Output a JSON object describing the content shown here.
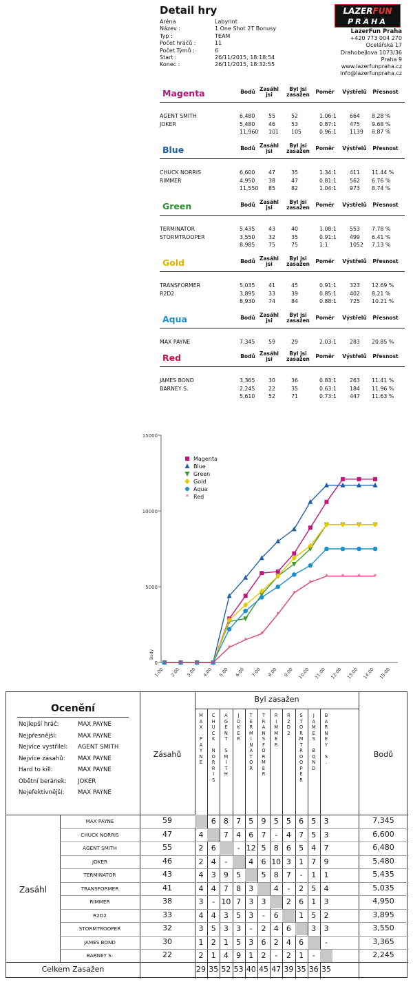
{
  "detail": {
    "title": "Detail hry",
    "fields": [
      {
        "label": "Aréna",
        "value": "Labyrint"
      },
      {
        "label": "Název :",
        "value": "1 One Shot 2T Bonusy"
      },
      {
        "label": "Typ :",
        "value": "TEAM"
      },
      {
        "label": "Počet hráčů :",
        "value": "11"
      },
      {
        "label": "Počet Týmů :",
        "value": "6"
      },
      {
        "label": "Start :",
        "value": "26/11/2015,   18:18:54"
      },
      {
        "label": "Konec :",
        "value": "26/11/2015,   18:32:55"
      }
    ]
  },
  "logo": {
    "line1a": "LAZER",
    "line1b": "FUN",
    "line2": "PRAHA"
  },
  "company": {
    "name": "LazerFun Praha",
    "lines": [
      "+420 773 004 270",
      "Ocelářská 17",
      "Drahobejlova 1073/36",
      "Praha 9",
      "www.lazerfunpraha.cz",
      "info@lazerfunpraha.cz"
    ]
  },
  "headers": {
    "bodu": "Bodů",
    "zasahl": "Zasáhl\njsi",
    "zasazen": "Byl jsi\nzasažen",
    "pomer": "Poměr",
    "vystrelu": "Výstřelů",
    "presnost": "Přesnost"
  },
  "teams": [
    {
      "name": "Magenta",
      "color": "#b5157a",
      "players": [
        {
          "name": "AGENT SMITH",
          "bodu": "6,480",
          "zasahl": "55",
          "zasazen": "52",
          "pomer": "1.06:1",
          "vystrelu": "664",
          "presnost": "8.28 %"
        },
        {
          "name": "JOKER",
          "bodu": "5,480",
          "zasahl": "46",
          "zasazen": "53",
          "pomer": "0.87:1",
          "vystrelu": "475",
          "presnost": "9.68 %"
        }
      ],
      "total": {
        "bodu": "11,960",
        "zasahl": "101",
        "zasazen": "105",
        "pomer": "0.96:1",
        "vystrelu": "1139",
        "presnost": "8.87 %"
      }
    },
    {
      "name": "Blue",
      "color": "#1f5fa8",
      "players": [
        {
          "name": "CHUCK NORRIS",
          "bodu": "6,600",
          "zasahl": "47",
          "zasazen": "35",
          "pomer": "1.34:1",
          "vystrelu": "411",
          "presnost": "11.44 %"
        },
        {
          "name": "RIMMER",
          "bodu": "4,950",
          "zasahl": "38",
          "zasazen": "47",
          "pomer": "0.81:1",
          "vystrelu": "562",
          "presnost": "6.76 %"
        }
      ],
      "total": {
        "bodu": "11,550",
        "zasahl": "85",
        "zasazen": "82",
        "pomer": "1.04:1",
        "vystrelu": "973",
        "presnost": "8.74 %"
      }
    },
    {
      "name": "Green",
      "color": "#2a8f2a",
      "players": [
        {
          "name": "TERMINATOR",
          "bodu": "5,435",
          "zasahl": "43",
          "zasazen": "40",
          "pomer": "1.08:1",
          "vystrelu": "553",
          "presnost": "7.78 %"
        },
        {
          "name": "STORMTROOPER",
          "bodu": "3,550",
          "zasahl": "32",
          "zasazen": "35",
          "pomer": "0.91:1",
          "vystrelu": "499",
          "presnost": "6.41 %"
        }
      ],
      "total": {
        "bodu": "8,985",
        "zasahl": "75",
        "zasazen": "75",
        "pomer": "1:1",
        "vystrelu": "1052",
        "presnost": "7.13 %"
      }
    },
    {
      "name": "Gold",
      "color": "#e0b000",
      "players": [
        {
          "name": "TRANSFORMER",
          "bodu": "5,035",
          "zasahl": "41",
          "zasazen": "45",
          "pomer": "0.91:1",
          "vystrelu": "323",
          "presnost": "12.69 %"
        },
        {
          "name": "R2D2",
          "bodu": "3,895",
          "zasahl": "33",
          "zasazen": "39",
          "pomer": "0.85:1",
          "vystrelu": "402",
          "presnost": "8.21 %"
        }
      ],
      "total": {
        "bodu": "8,930",
        "zasahl": "74",
        "zasazen": "84",
        "pomer": "0.88:1",
        "vystrelu": "725",
        "presnost": "10.21 %"
      }
    },
    {
      "name": "Aqua",
      "color": "#1b8fc9",
      "players": [
        {
          "name": "MAX PAYNE",
          "bodu": "7,345",
          "zasahl": "59",
          "zasazen": "29",
          "pomer": "2.03:1",
          "vystrelu": "283",
          "presnost": "20.85 %"
        }
      ],
      "total": null
    },
    {
      "name": "Red",
      "color": "#c8144a",
      "players": [
        {
          "name": "JAMES BOND",
          "bodu": "3,365",
          "zasahl": "30",
          "zasazen": "36",
          "pomer": "0.83:1",
          "vystrelu": "263",
          "presnost": "11.41 %"
        },
        {
          "name": "BARNEY S.",
          "bodu": "2,245",
          "zasahl": "22",
          "zasazen": "35",
          "pomer": "0.63:1",
          "vystrelu": "184",
          "presnost": "11.96 %"
        }
      ],
      "total": {
        "bodu": "5,610",
        "zasahl": "52",
        "zasazen": "71",
        "pomer": "0.73:1",
        "vystrelu": "447",
        "presnost": "11.63 %"
      }
    }
  ],
  "chart_data": {
    "type": "line",
    "ylabel": "Body",
    "ylim": [
      0,
      15000
    ],
    "yticks": [
      "0",
      "5000",
      "10000",
      "15000"
    ],
    "x": [
      "1:00",
      "2:00",
      "3:00",
      "4:00",
      "5:00",
      "6:00",
      "7:00",
      "8:00",
      "9:00",
      "10:00",
      "11:00",
      "12:00",
      "13:00",
      "14:00",
      "15:00"
    ],
    "legend_position": "top-left",
    "series": [
      {
        "name": "Magenta",
        "color": "#c0157a",
        "marker": "square",
        "values": [
          0,
          0,
          0,
          0,
          2900,
          4400,
          5900,
          6000,
          7200,
          8900,
          10600,
          12100,
          12100,
          12100,
          12100
        ]
      },
      {
        "name": "Blue",
        "color": "#1f5fa8",
        "marker": "triangle",
        "values": [
          0,
          0,
          0,
          0,
          4400,
          5600,
          6900,
          8000,
          8800,
          10600,
          11700,
          11700,
          11700,
          11700,
          11700
        ]
      },
      {
        "name": "Green",
        "color": "#3a9a2a",
        "marker": "triangle-down",
        "values": [
          0,
          0,
          0,
          0,
          2700,
          2900,
          4500,
          5700,
          6500,
          7500,
          9100,
          9100,
          9100,
          9100,
          9100
        ]
      },
      {
        "name": "Gold",
        "color": "#e6c800",
        "marker": "diamond",
        "values": [
          0,
          0,
          0,
          0,
          2800,
          3800,
          4700,
          5700,
          6900,
          7700,
          9100,
          9100,
          9100,
          9100,
          9100
        ]
      },
      {
        "name": "Aqua",
        "color": "#1b8fc9",
        "marker": "circle",
        "values": [
          0,
          0,
          0,
          0,
          2200,
          3400,
          4300,
          5000,
          5800,
          6400,
          7500,
          7500,
          7500,
          7500,
          7500
        ]
      },
      {
        "name": "Red",
        "color": "#e0406a",
        "marker": "star",
        "values": [
          0,
          0,
          0,
          0,
          1000,
          1500,
          1900,
          3200,
          4600,
          5300,
          5700,
          5700,
          5700,
          5700,
          5700
        ]
      }
    ]
  },
  "oceneni": {
    "title": "Ocenění",
    "items": [
      {
        "label": "Nejlepší hráč:",
        "value": "MAX PAYNE"
      },
      {
        "label": "Nejpřesnější:",
        "value": "MAX PAYNE"
      },
      {
        "label": "Nejvíce vystřilel:",
        "value": "AGENT SMITH"
      },
      {
        "label": "Nejvíce zásahů:",
        "value": "MAX PAYNE"
      },
      {
        "label": "Hard to kill:",
        "value": "MAX PAYNE"
      },
      {
        "label": "Obětní beránek:",
        "value": "JOKER"
      },
      {
        "label": "Nejefektivnější:",
        "value": "MAX PAYNE"
      }
    ],
    "zasahu_label": "Zásahů",
    "byl_zasazen_label": "Byl zasažen",
    "bodu_label": "Bodů",
    "zasahl_label": "Zasáhl",
    "celkem_label": "Celkem Zasažen",
    "targets": [
      "MAX PAYNE",
      "CHUCK NORRIS",
      "AGENT SMITH",
      "JOKER",
      "TERMINATOR",
      "TRANSFORMER",
      "RIMMER",
      "R2D2",
      "STORMTROOPER",
      "JAMES BOND",
      "BARNEY S."
    ],
    "rows": [
      {
        "name": "MAX PAYNE",
        "zasahu": "59",
        "cells": [
          "",
          "6",
          "8",
          "7",
          "5",
          "9",
          "5",
          "5",
          "6",
          "5",
          "3"
        ],
        "bodu": "7,345"
      },
      {
        "name": "CHUCK NORRIS",
        "zasahu": "47",
        "cells": [
          "4",
          "",
          "7",
          "4",
          "6",
          "7",
          "-",
          "4",
          "7",
          "5",
          "3"
        ],
        "bodu": "6,600"
      },
      {
        "name": "AGENT SMITH",
        "zasahu": "55",
        "cells": [
          "2",
          "6",
          "",
          "-",
          "12",
          "5",
          "8",
          "6",
          "5",
          "4",
          "7"
        ],
        "bodu": "6,480"
      },
      {
        "name": "JOKER",
        "zasahu": "46",
        "cells": [
          "2",
          "4",
          "-",
          "",
          "4",
          "6",
          "10",
          "3",
          "1",
          "7",
          "9"
        ],
        "bodu": "5,480"
      },
      {
        "name": "TERMINATOR",
        "zasahu": "43",
        "cells": [
          "4",
          "3",
          "9",
          "5",
          "",
          "5",
          "8",
          "7",
          "-",
          "1",
          "1"
        ],
        "bodu": "5,435"
      },
      {
        "name": "TRANSFORMER",
        "zasahu": "41",
        "cells": [
          "4",
          "4",
          "7",
          "8",
          "3",
          "",
          "4",
          "-",
          "2",
          "5",
          "4"
        ],
        "bodu": "5,035"
      },
      {
        "name": "RIMMER",
        "zasahu": "38",
        "cells": [
          "3",
          "-",
          "10",
          "7",
          "3",
          "3",
          "",
          "2",
          "6",
          "1",
          "3"
        ],
        "bodu": "4,950"
      },
      {
        "name": "R2D2",
        "zasahu": "33",
        "cells": [
          "4",
          "4",
          "3",
          "5",
          "3",
          "-",
          "6",
          "",
          "1",
          "5",
          "2"
        ],
        "bodu": "3,895"
      },
      {
        "name": "STORMTROOPER",
        "zasahu": "32",
        "cells": [
          "3",
          "5",
          "3",
          "3",
          "-",
          "2",
          "4",
          "6",
          "",
          "3",
          "3"
        ],
        "bodu": "3,550"
      },
      {
        "name": "JAMES BOND",
        "zasahu": "30",
        "cells": [
          "1",
          "2",
          "1",
          "5",
          "3",
          "6",
          "2",
          "4",
          "6",
          "",
          "-"
        ],
        "bodu": "3,365"
      },
      {
        "name": "BARNEY S.",
        "zasahu": "22",
        "cells": [
          "2",
          "1",
          "4",
          "9",
          "1",
          "2",
          "-",
          "2",
          "1",
          "-",
          ""
        ],
        "bodu": "2,245"
      }
    ],
    "totals": [
      "29",
      "35",
      "52",
      "53",
      "40",
      "45",
      "47",
      "39",
      "35",
      "36",
      "35"
    ]
  }
}
